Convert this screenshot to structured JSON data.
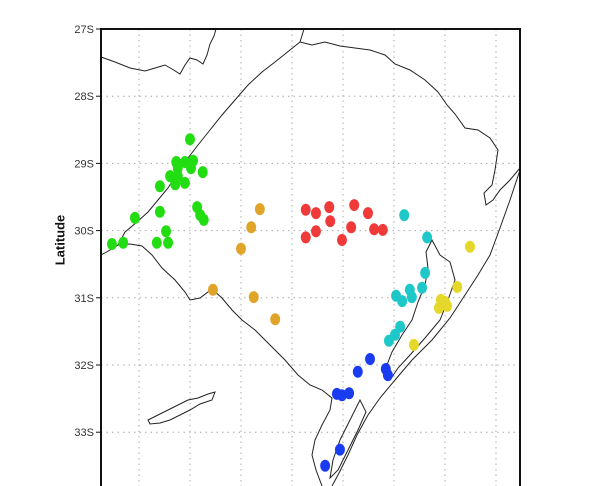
{
  "axis": {
    "ylabel": "Latitude",
    "yticks": [
      "27S",
      "28S",
      "29S",
      "30S",
      "31S",
      "32S",
      "33S"
    ],
    "ytick_values": [
      -27,
      -28,
      -29,
      -30,
      -31,
      -32,
      -33
    ],
    "xgrid_values": [
      -57,
      -56,
      -55,
      -54,
      -53,
      -52,
      -51,
      -50
    ]
  },
  "chart_data": {
    "type": "scatter",
    "ylabel": "Latitude",
    "xlim": [
      -57.75,
      -49.5
    ],
    "ylim": [
      -33.9,
      -27
    ],
    "grid": true,
    "series": [
      {
        "name": "green",
        "color": "#22dd11",
        "points": [
          [
            -56.0,
            -28.64
          ],
          [
            -56.27,
            -28.98
          ],
          [
            -56.1,
            -28.98
          ],
          [
            -55.94,
            -28.96
          ],
          [
            -56.24,
            -29.07
          ],
          [
            -55.98,
            -29.07
          ],
          [
            -55.75,
            -29.13
          ],
          [
            -56.39,
            -29.19
          ],
          [
            -56.24,
            -29.19
          ],
          [
            -56.59,
            -29.34
          ],
          [
            -56.29,
            -29.31
          ],
          [
            -56.1,
            -29.29
          ],
          [
            -55.86,
            -29.65
          ],
          [
            -55.8,
            -29.77
          ],
          [
            -55.73,
            -29.84
          ],
          [
            -56.59,
            -29.72
          ],
          [
            -56.47,
            -30.01
          ],
          [
            -57.08,
            -29.81
          ],
          [
            -57.31,
            -30.18
          ],
          [
            -57.53,
            -30.2
          ],
          [
            -56.65,
            -30.18
          ],
          [
            -56.43,
            -30.18
          ]
        ]
      },
      {
        "name": "orange",
        "color": "#e0a428",
        "points": [
          [
            -54.63,
            -29.68
          ],
          [
            -54.8,
            -29.95
          ],
          [
            -55.0,
            -30.27
          ],
          [
            -55.55,
            -30.88
          ],
          [
            -54.75,
            -30.99
          ],
          [
            -54.33,
            -31.32
          ]
        ]
      },
      {
        "name": "red",
        "color": "#f03a3a",
        "points": [
          [
            -53.73,
            -29.69
          ],
          [
            -53.53,
            -29.74
          ],
          [
            -53.27,
            -29.65
          ],
          [
            -53.25,
            -29.86
          ],
          [
            -52.78,
            -29.62
          ],
          [
            -52.51,
            -29.74
          ],
          [
            -53.73,
            -30.1
          ],
          [
            -53.53,
            -30.01
          ],
          [
            -53.02,
            -30.14
          ],
          [
            -52.84,
            -29.95
          ],
          [
            -52.39,
            -29.98
          ],
          [
            -52.22,
            -29.99
          ]
        ]
      },
      {
        "name": "cyan",
        "color": "#1ec8c8",
        "points": [
          [
            -51.8,
            -29.77
          ],
          [
            -51.35,
            -30.1
          ],
          [
            -51.39,
            -30.63
          ],
          [
            -51.45,
            -30.85
          ],
          [
            -51.69,
            -30.88
          ],
          [
            -51.96,
            -30.97
          ],
          [
            -51.84,
            -31.05
          ],
          [
            -51.65,
            -30.99
          ],
          [
            -51.88,
            -31.43
          ],
          [
            -51.98,
            -31.55
          ],
          [
            -52.1,
            -31.64
          ]
        ]
      },
      {
        "name": "yellow",
        "color": "#e6d82a",
        "points": [
          [
            -50.51,
            -30.24
          ],
          [
            -50.76,
            -30.84
          ],
          [
            -51.08,
            -31.03
          ],
          [
            -51.0,
            -31.06
          ],
          [
            -50.96,
            -31.12
          ],
          [
            -51.12,
            -31.15
          ],
          [
            -51.61,
            -31.7
          ]
        ]
      },
      {
        "name": "blue",
        "color": "#1a3cf0",
        "points": [
          [
            -52.47,
            -31.91
          ],
          [
            -52.71,
            -32.1
          ],
          [
            -52.16,
            -32.06
          ],
          [
            -52.12,
            -32.15
          ],
          [
            -53.12,
            -32.43
          ],
          [
            -53.02,
            -32.45
          ],
          [
            -52.88,
            -32.42
          ],
          [
            -53.06,
            -33.26
          ],
          [
            -53.35,
            -33.5
          ]
        ]
      }
    ]
  }
}
